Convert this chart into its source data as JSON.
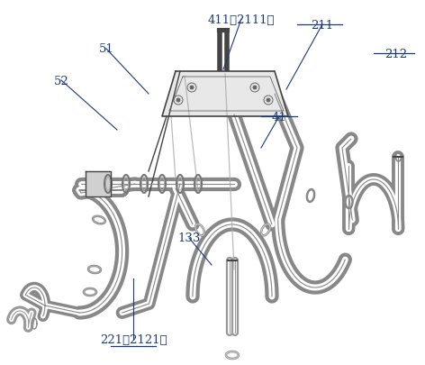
{
  "bg_color": "#ffffff",
  "tube_color": "#888888",
  "tube_inner": "#aaaaaa",
  "line_color": "#666666",
  "dark_line": "#444444",
  "label_color": "#1a3a7a",
  "fig_width": 4.72,
  "fig_height": 4.06,
  "dpi": 100,
  "tube_lw": 10,
  "tube_lw2": 8,
  "annotation_lw": 0.8,
  "label_fontsize": 9.5
}
